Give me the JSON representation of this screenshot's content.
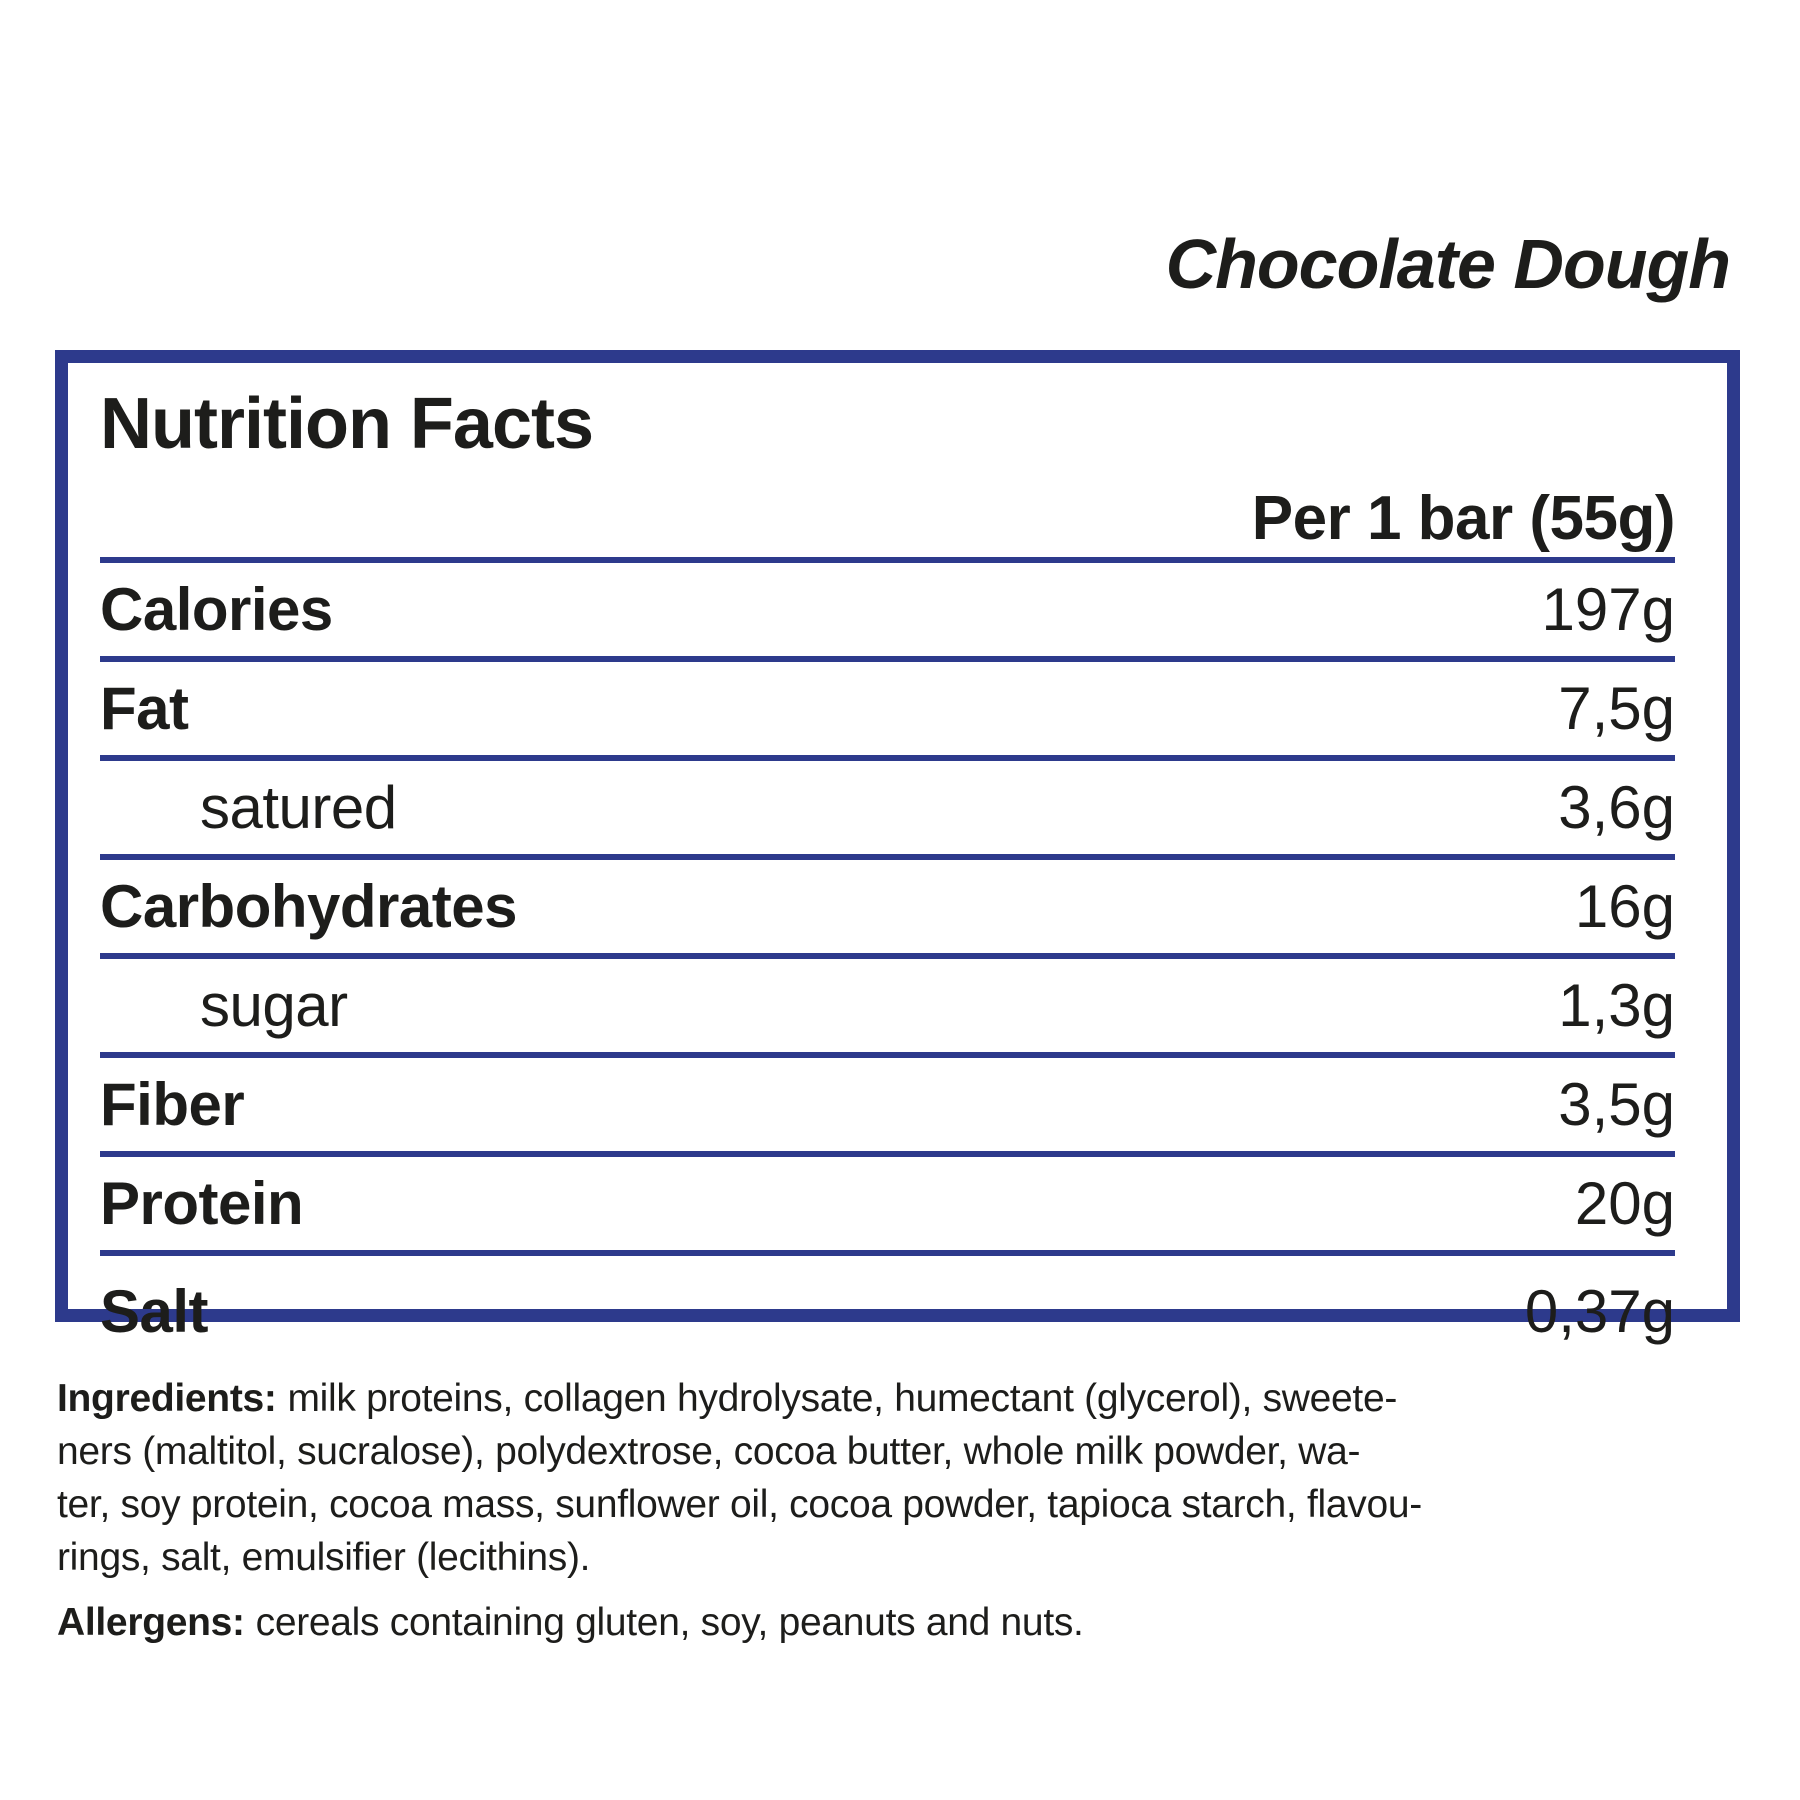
{
  "product": {
    "title": "Chocolate Dough"
  },
  "panel": {
    "title": "Nutrition Facts",
    "serving": "Per 1 bar (55g)",
    "rows": [
      {
        "label": "Calories",
        "value": "197g",
        "indent": false
      },
      {
        "label": "Fat",
        "value": "7,5g",
        "indent": false
      },
      {
        "label": "satured",
        "value": "3,6g",
        "indent": true
      },
      {
        "label": "Carbohydrates",
        "value": "16g",
        "indent": false
      },
      {
        "label": "sugar",
        "value": "1,3g",
        "indent": true
      },
      {
        "label": "Fiber",
        "value": "3,5g",
        "indent": false
      },
      {
        "label": "Protein",
        "value": "20g",
        "indent": false
      },
      {
        "label": "Salt",
        "value": "0,37g",
        "indent": false
      }
    ]
  },
  "ingredients": {
    "label": "Ingredients:",
    "lines": [
      "milk proteins, collagen hydrolysate, humectant (glycerol), sweete-",
      "ners (maltitol, sucralose), polydextrose, cocoa butter, whole milk powder, wa-",
      "ter, soy protein, cocoa mass, sunflower oil, cocoa powder, tapioca starch, flavou-",
      "rings, salt, emulsifier (lecithins)."
    ]
  },
  "allergens": {
    "label": "Allergens:",
    "text": "cereals containing gluten, soy, peanuts and nuts."
  },
  "colors": {
    "accent_navy": "#2d3a8c",
    "text": "#1d1d1b",
    "background": "#ffffff"
  }
}
